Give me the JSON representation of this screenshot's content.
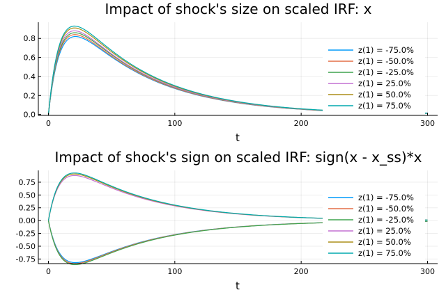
{
  "chart_data": [
    {
      "type": "line",
      "title": "Impact of shock's size on scaled IRF: x",
      "xlabel": "t",
      "ylabel": "",
      "xlim": [
        -8,
        308
      ],
      "ylim": [
        -0.01,
        0.97
      ],
      "xticks": [
        0,
        100,
        200,
        300
      ],
      "yticks": [
        0.0,
        0.2,
        0.4,
        0.6,
        0.8
      ],
      "ytick_labels": [
        "0.0",
        "0.2",
        "0.4",
        "0.6",
        "0.8"
      ],
      "legend_position": "right",
      "grid": true,
      "x_end": 218,
      "series": [
        {
          "name": "z(1) = -75.0%",
          "color": "#009AFA",
          "peak": 0.82,
          "peak_t": 32,
          "end": 0.04,
          "mirror": false
        },
        {
          "name": "z(1) = -50.0%",
          "color": "#E36F47",
          "peak": 0.84,
          "peak_t": 31,
          "end": 0.035,
          "mirror": false
        },
        {
          "name": "z(1) = -25.0%",
          "color": "#3EA44E",
          "peak": 0.86,
          "peak_t": 31,
          "end": 0.03,
          "mirror": false
        },
        {
          "name": "z(1) = 25.0%",
          "color": "#C371D2",
          "peak": 0.88,
          "peak_t": 30,
          "end": 0.03,
          "mirror": false
        },
        {
          "name": "z(1) = 50.0%",
          "color": "#AC8E18",
          "peak": 0.91,
          "peak_t": 30,
          "end": 0.03,
          "mirror": false
        },
        {
          "name": "z(1) = 75.0%",
          "color": "#00A9AD",
          "peak": 0.93,
          "peak_t": 30,
          "end": 0.03,
          "mirror": false
        }
      ]
    },
    {
      "type": "line",
      "title": "Impact of shock's sign on scaled IRF: sign(x - x_ss)*x",
      "xlabel": "t",
      "ylabel": "",
      "xlim": [
        -8,
        308
      ],
      "ylim": [
        -0.84,
        0.98
      ],
      "xticks": [
        0,
        100,
        200,
        300
      ],
      "yticks": [
        -0.75,
        -0.5,
        -0.25,
        0.0,
        0.25,
        0.5,
        0.75
      ],
      "ytick_labels": [
        "-0.75",
        "-0.50",
        "-0.25",
        "0.00",
        "0.25",
        "0.50",
        "0.75"
      ],
      "legend_position": "right",
      "grid": true,
      "x_end": 218,
      "series": [
        {
          "name": "z(1) = -75.0%",
          "color": "#009AFA",
          "peak": -0.82,
          "peak_t": 32,
          "end": -0.04,
          "mirror": true
        },
        {
          "name": "z(1) = -50.0%",
          "color": "#E36F47",
          "peak": -0.84,
          "peak_t": 31,
          "end": -0.035,
          "mirror": true
        },
        {
          "name": "z(1) = -25.0%",
          "color": "#3EA44E",
          "peak": -0.86,
          "peak_t": 31,
          "end": -0.03,
          "mirror": true
        },
        {
          "name": "z(1) = 25.0%",
          "color": "#C371D2",
          "peak": 0.88,
          "peak_t": 30,
          "end": 0.03,
          "mirror": false
        },
        {
          "name": "z(1) = 50.0%",
          "color": "#AC8E18",
          "peak": 0.91,
          "peak_t": 30,
          "end": 0.03,
          "mirror": false
        },
        {
          "name": "z(1) = 75.0%",
          "color": "#00A9AD",
          "peak": 0.93,
          "peak_t": 30,
          "end": 0.03,
          "mirror": false
        }
      ]
    }
  ]
}
